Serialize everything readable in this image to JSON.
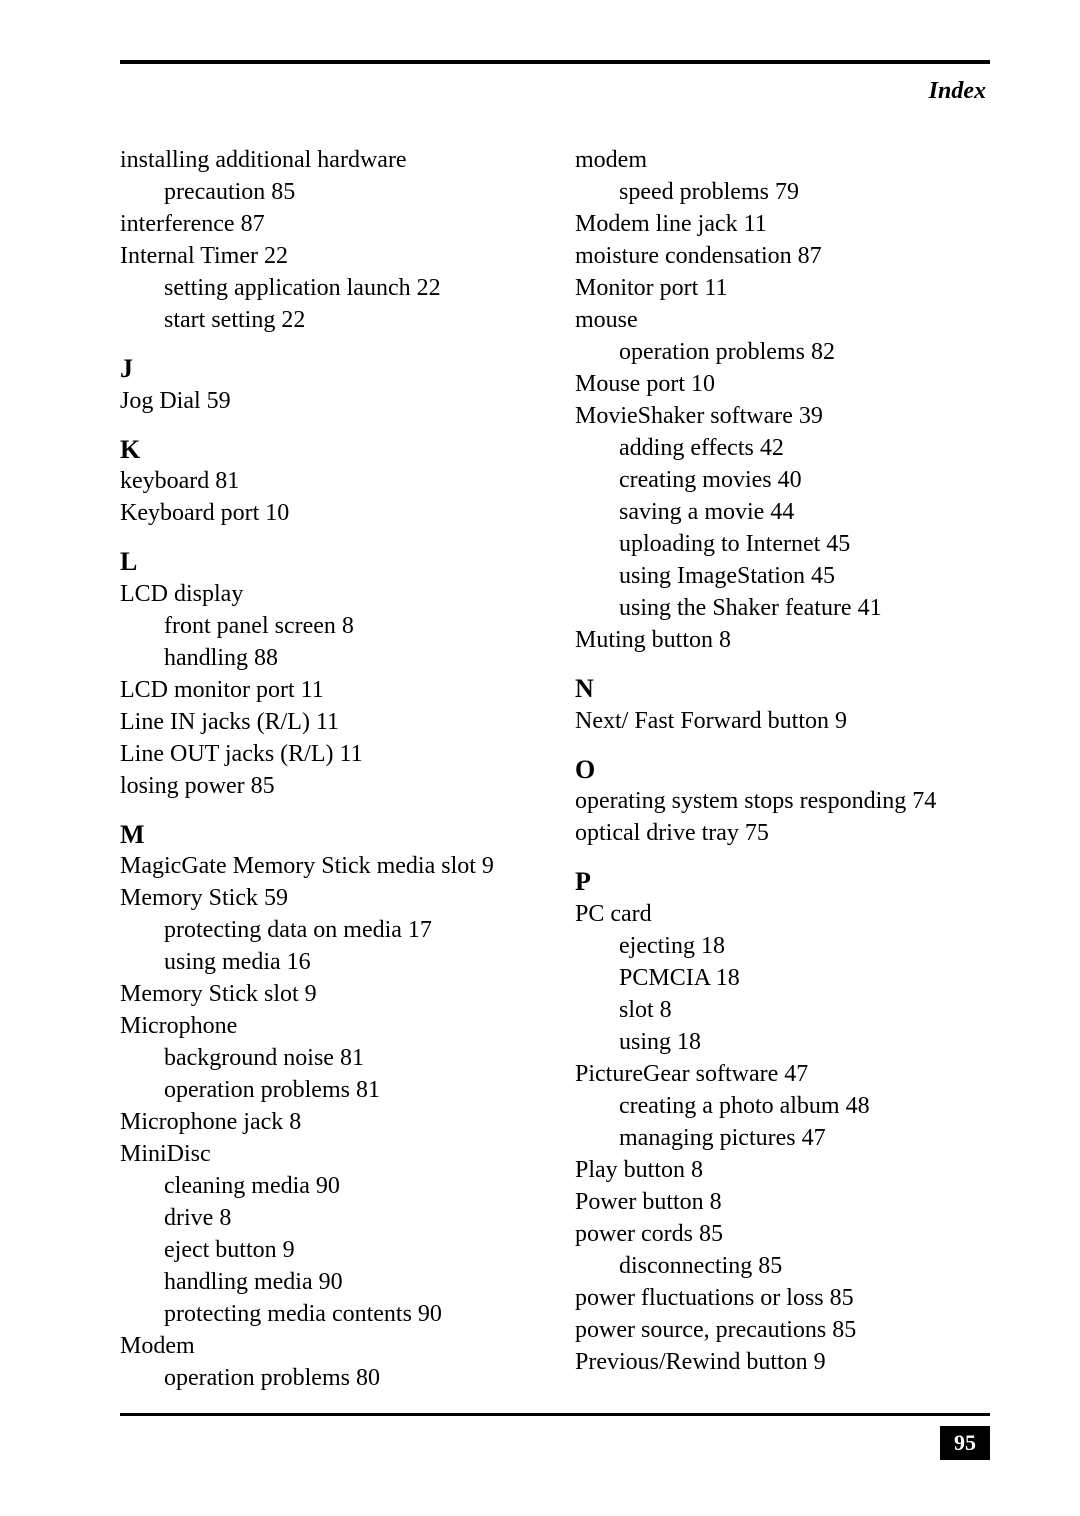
{
  "header": {
    "label": "Index"
  },
  "footer": {
    "page": "95"
  },
  "left": {
    "pre": [
      {
        "t": "installing additional hardware",
        "s": false
      },
      {
        "t": "precaution 85",
        "s": true
      },
      {
        "t": "interference 87",
        "s": false
      },
      {
        "t": "Internal Timer 22",
        "s": false
      },
      {
        "t": "setting application launch 22",
        "s": true
      },
      {
        "t": "start setting 22",
        "s": true
      }
    ],
    "J": {
      "letter": "J",
      "items": [
        {
          "t": "Jog Dial 59",
          "s": false
        }
      ]
    },
    "K": {
      "letter": "K",
      "items": [
        {
          "t": "keyboard 81",
          "s": false
        },
        {
          "t": "Keyboard port 10",
          "s": false
        }
      ]
    },
    "L": {
      "letter": "L",
      "items": [
        {
          "t": "LCD display",
          "s": false
        },
        {
          "t": "front panel screen 8",
          "s": true
        },
        {
          "t": "handling 88",
          "s": true
        },
        {
          "t": "LCD monitor port 11",
          "s": false
        },
        {
          "t": "Line IN jacks (R/L) 11",
          "s": false
        },
        {
          "t": "Line OUT jacks (R/L) 11",
          "s": false
        },
        {
          "t": "losing power 85",
          "s": false
        }
      ]
    },
    "M": {
      "letter": "M",
      "items": [
        {
          "t": "MagicGate Memory Stick media slot 9",
          "s": false
        },
        {
          "t": "Memory Stick 59",
          "s": false
        },
        {
          "t": "protecting data on media 17",
          "s": true
        },
        {
          "t": "using media 16",
          "s": true
        },
        {
          "t": "Memory Stick slot 9",
          "s": false
        },
        {
          "t": "Microphone",
          "s": false
        },
        {
          "t": "background noise 81",
          "s": true
        },
        {
          "t": "operation problems 81",
          "s": true
        },
        {
          "t": "Microphone jack 8",
          "s": false
        },
        {
          "t": "MiniDisc",
          "s": false
        },
        {
          "t": "cleaning media 90",
          "s": true
        },
        {
          "t": "drive 8",
          "s": true
        },
        {
          "t": "eject button 9",
          "s": true
        },
        {
          "t": "handling media 90",
          "s": true
        },
        {
          "t": "protecting media contents 90",
          "s": true
        },
        {
          "t": "Modem",
          "s": false
        },
        {
          "t": "operation problems 80",
          "s": true
        }
      ]
    }
  },
  "right": {
    "pre": [
      {
        "t": "modem",
        "s": false
      },
      {
        "t": "speed problems 79",
        "s": true
      },
      {
        "t": "Modem line jack 11",
        "s": false
      },
      {
        "t": "moisture condensation 87",
        "s": false
      },
      {
        "t": "Monitor port 11",
        "s": false
      },
      {
        "t": "mouse",
        "s": false
      },
      {
        "t": "operation problems 82",
        "s": true
      },
      {
        "t": "Mouse port 10",
        "s": false
      },
      {
        "t": "MovieShaker software 39",
        "s": false
      },
      {
        "t": "adding effects 42",
        "s": true
      },
      {
        "t": "creating movies 40",
        "s": true
      },
      {
        "t": "saving a movie 44",
        "s": true
      },
      {
        "t": "uploading to Internet 45",
        "s": true
      },
      {
        "t": "using ImageStation 45",
        "s": true
      },
      {
        "t": "using the Shaker feature 41",
        "s": true
      },
      {
        "t": "Muting button 8",
        "s": false
      }
    ],
    "N": {
      "letter": "N",
      "items": [
        {
          "t": "Next/ Fast Forward button 9",
          "s": false
        }
      ]
    },
    "O": {
      "letter": "O",
      "items": [
        {
          "t": "operating system stops responding 74",
          "s": false
        },
        {
          "t": "optical drive tray 75",
          "s": false
        }
      ]
    },
    "P": {
      "letter": "P",
      "items": [
        {
          "t": "PC card",
          "s": false
        },
        {
          "t": "ejecting 18",
          "s": true
        },
        {
          "t": "PCMCIA 18",
          "s": true
        },
        {
          "t": "slot 8",
          "s": true
        },
        {
          "t": "using 18",
          "s": true
        },
        {
          "t": "PictureGear software 47",
          "s": false
        },
        {
          "t": "creating a photo album 48",
          "s": true
        },
        {
          "t": "managing pictures 47",
          "s": true
        },
        {
          "t": "Play button 8",
          "s": false
        },
        {
          "t": "Power button 8",
          "s": false
        },
        {
          "t": "power cords 85",
          "s": false
        },
        {
          "t": "disconnecting 85",
          "s": true
        },
        {
          "t": "power fluctuations or loss 85",
          "s": false
        },
        {
          "t": "power source, precautions 85",
          "s": false
        },
        {
          "t": "Previous/Rewind button 9",
          "s": false
        }
      ]
    }
  }
}
